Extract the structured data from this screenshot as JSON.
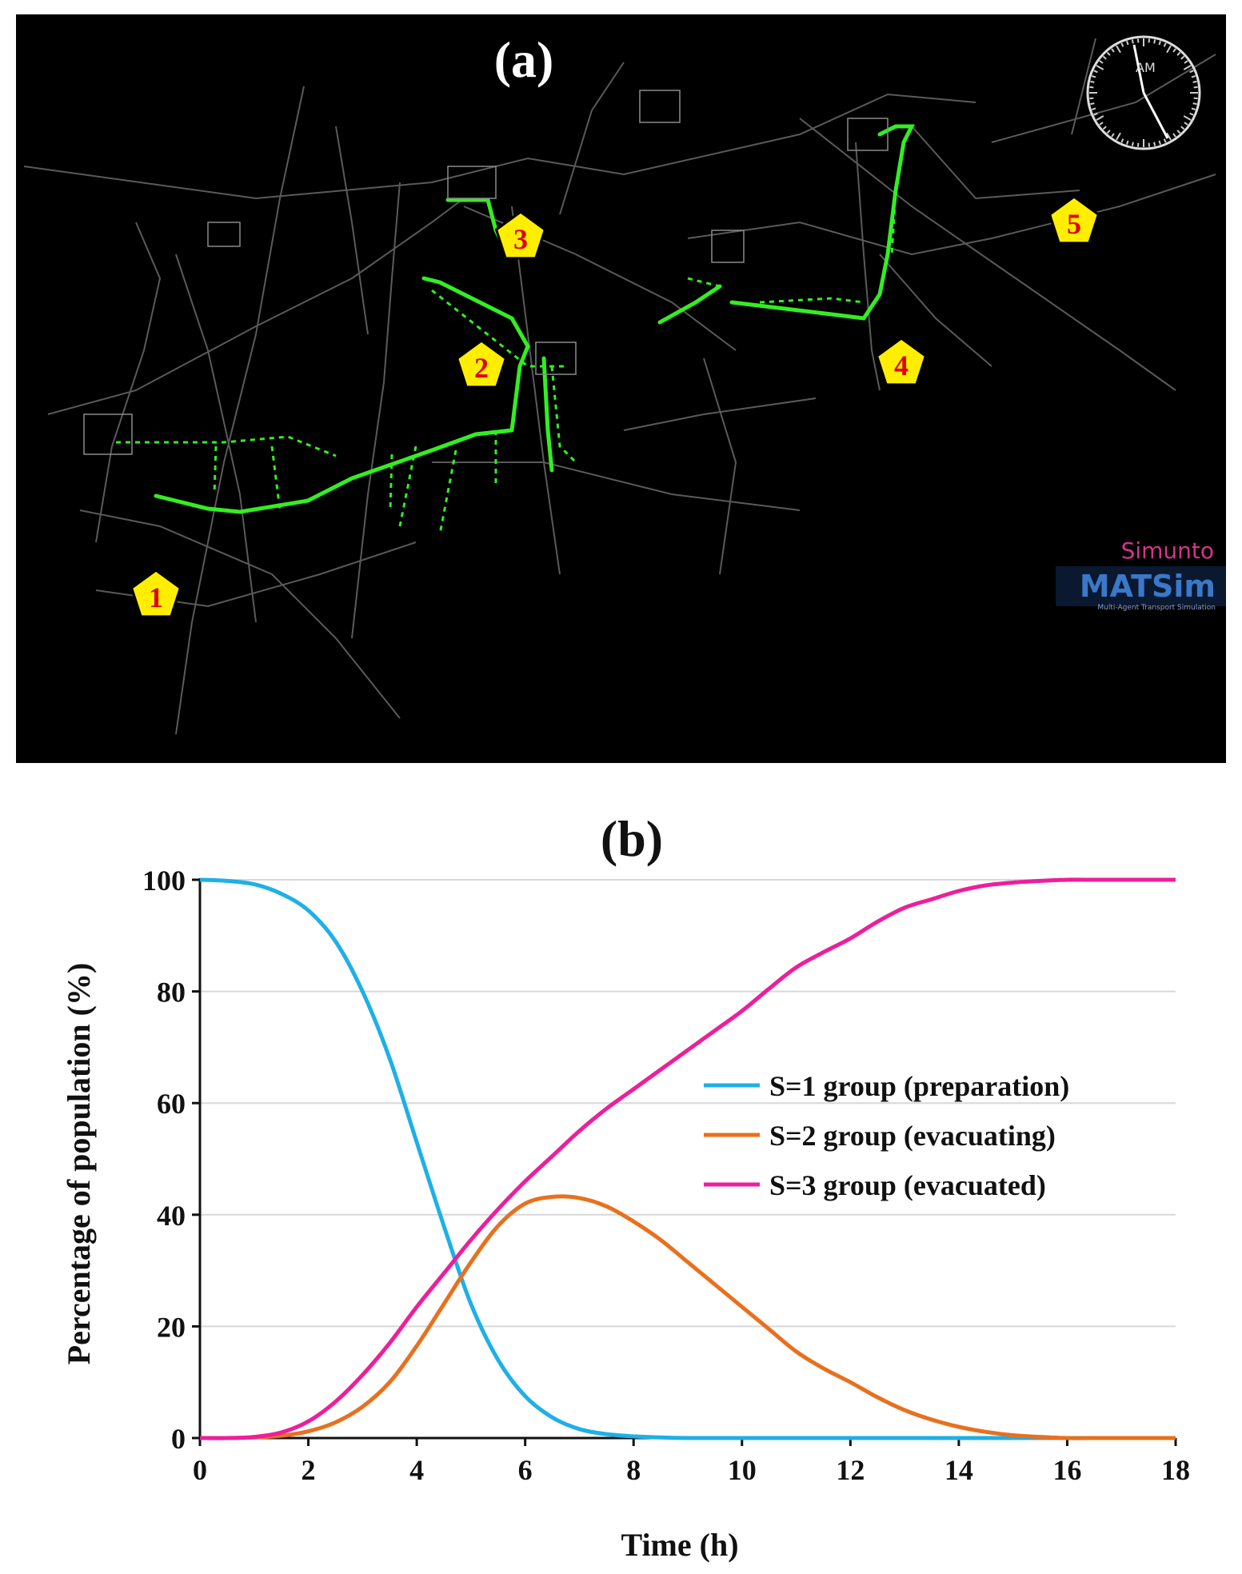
{
  "map": {
    "label": "(a)",
    "clock_text": "AM",
    "sim_logo": "Simunto",
    "matsim_logo": "MATSim",
    "matsim_sub": "Multi-Agent Transport Simulation",
    "markers": [
      "1",
      "2",
      "3",
      "4",
      "5"
    ],
    "colors": {
      "background": "#000000",
      "road": "#5a5a5a",
      "route": "#33ee22",
      "marker_fill": "#ffee00",
      "marker_text": "#e00000"
    }
  },
  "chart_data": {
    "type": "line",
    "label": "(b)",
    "title": "",
    "xlabel": "Time (h)",
    "ylabel": "Percentage of population (%)",
    "xlim": [
      0,
      18
    ],
    "ylim": [
      0,
      100
    ],
    "xticks": [
      0,
      2,
      4,
      6,
      8,
      10,
      12,
      14,
      16,
      18
    ],
    "yticks": [
      0,
      20,
      40,
      60,
      80,
      100
    ],
    "grid": "horizontal",
    "legend_position": "center-right",
    "x": [
      0,
      0.5,
      1,
      1.5,
      2,
      2.5,
      3,
      3.5,
      4,
      4.5,
      5,
      5.5,
      6,
      6.5,
      7,
      7.5,
      8,
      8.5,
      9,
      9.5,
      10,
      10.5,
      11,
      11.5,
      12,
      12.5,
      13,
      13.5,
      14,
      14.5,
      15,
      15.5,
      16,
      16.5,
      17,
      17.5,
      18
    ],
    "series": [
      {
        "name": "S=1 group (preparation)",
        "color": "#1eb0e6",
        "values": [
          100,
          99.8,
          99.2,
          97.5,
          94.5,
          89,
          80,
          68,
          53,
          38,
          24,
          14,
          7.5,
          3.7,
          1.6,
          0.7,
          0.3,
          0.1,
          0,
          0,
          0,
          0,
          0,
          0,
          0,
          0,
          0,
          0,
          0,
          0,
          0,
          0,
          0,
          0,
          0,
          0,
          0
        ]
      },
      {
        "name": "S=2 group (evacuating)",
        "color": "#e8701e",
        "values": [
          0,
          0,
          0.1,
          0.4,
          1.2,
          2.8,
          5.6,
          10,
          16.5,
          24,
          31.5,
          38,
          42,
          43.2,
          43,
          41.5,
          38.8,
          35.5,
          31.5,
          27.5,
          23.5,
          19.5,
          15.5,
          12.5,
          10,
          7.3,
          5,
          3.3,
          2,
          1.1,
          0.5,
          0.2,
          0,
          0,
          0,
          0,
          0
        ]
      },
      {
        "name": "S=3 group (evacuated)",
        "color": "#ee1e9c",
        "values": [
          0,
          0,
          0.2,
          1,
          3,
          6.5,
          11.3,
          17,
          23.5,
          29.5,
          35.5,
          41,
          46,
          50.5,
          55,
          59,
          62.5,
          66,
          69.5,
          73,
          76.5,
          80.5,
          84.3,
          87,
          89.5,
          92.5,
          95,
          96.5,
          98,
          99,
          99.5,
          99.8,
          100,
          100,
          100,
          100,
          100
        ]
      }
    ]
  }
}
